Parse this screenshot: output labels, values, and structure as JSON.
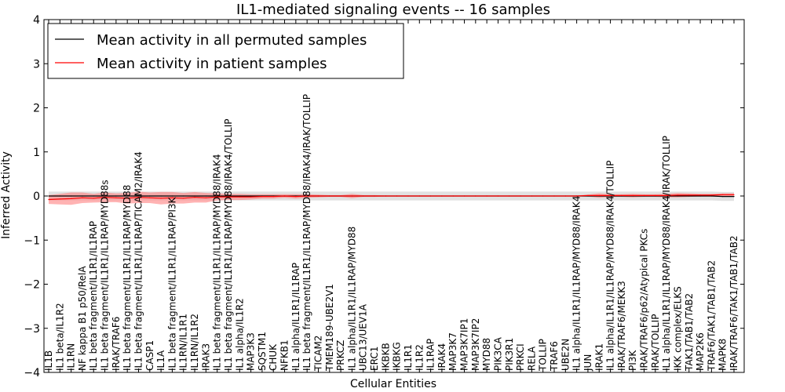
{
  "chart_data": {
    "type": "line",
    "title": "IL1-mediated signaling events -- 16 samples",
    "xlabel": "Cellular Entities",
    "ylabel": "Inferred Activity",
    "ylim": [
      -4,
      4
    ],
    "yticks": [
      -4,
      -3,
      -2,
      -1,
      0,
      1,
      2,
      3,
      4
    ],
    "grid": false,
    "legend_position": "top-left",
    "categories": [
      "IL1B",
      "IL1 beta/IL1R2",
      "IL1RN",
      "NF kappa B1 p50/RelA",
      "IL1 beta fragment/IL1R1/IL1RAP",
      "IL1 beta fragment/IL1R1/IL1RAP/MYD88s",
      "IRAK/TRAF6",
      "IL1 beta fragment/IL1R1/IL1RAP/MYD88",
      "IL1 beta fragment/IL1R1/IL1RAP/TICAM2/IRAK4",
      "CASP1",
      "IL1A",
      "IL1 beta fragment/IL1R1/IL1RAP/PI3K",
      "IL1RN/IL1R1",
      "IL1RN/IL1R2",
      "IRAK3",
      "IL1 beta fragment/IL1R1/IL1RAP/MYD88/IRAK4",
      "IL1 beta fragment/IL1R1/IL1RAP/MYD88/IRAK4/TOLLIP",
      "IL1 alpha/IL1R2",
      "MAP3K3",
      "SQSTM1",
      "CHUK",
      "NFKB1",
      "IL1 alpha/IL1R1/IL1RAP",
      "IL1 beta fragment/IL1R1/IL1RAP/MYD88/IRAK4/IRAK/TOLLIP",
      "TICAM2",
      "TMEM189-UBE2V1",
      "PRKCZ",
      "IL1 alpha/IL1R1/IL1RAP/MYD88",
      "UBC13/UEV1A",
      "ERC1",
      "IKBKB",
      "IKBKG",
      "IL1R1",
      "IL1R2",
      "IL1RAP",
      "IRAK4",
      "MAP3K7",
      "MAP3K7IP1",
      "MAP3K7IP2",
      "MYD88",
      "PIK3CA",
      "PIK3R1",
      "PRKCI",
      "RELA",
      "TOLLIP",
      "TRAF6",
      "UBE2N",
      "IL1 alpha/IL1R1/IL1RAP/MYD88/IRAK4",
      "JUN",
      "IRAK1",
      "IL1 alpha/IL1R1/IL1RAP/MYD88/IRAK4/TOLLIP",
      "IRAK/TRAF6/MEKK3",
      "PI3K",
      "IRAK/TRAF6/p62/Atypical PKCs",
      "IRAK/TOLLIP",
      "IL1 alpha/IL1R1/IL1RAP/MYD88/IRAK4/IRAK/TOLLIP",
      "IKK complex/ELKS",
      "TAK1/TAB1/TAB2",
      "MAP2K6",
      "TRAF6/TAK1/TAB1/TAB2",
      "MAPK8",
      "IRAK/TRAF6/TAK1/TAB1/TAB2"
    ],
    "series": [
      {
        "name": "Mean activity in all permuted samples",
        "color": "#000000",
        "values": [
          0.0,
          0.0,
          0.0,
          0.0,
          0.0,
          0.0,
          0.0,
          0.0,
          0.0,
          0.0,
          0.0,
          0.0,
          0.0,
          0.0,
          0.0,
          0.0,
          0.0,
          0.0,
          0.0,
          0.0,
          0.0,
          0.0,
          0.0,
          0.0,
          0.0,
          0.0,
          0.0,
          0.0,
          0.0,
          0.0,
          0.0,
          0.0,
          0.0,
          0.0,
          0.0,
          0.0,
          0.0,
          0.0,
          0.0,
          0.0,
          0.0,
          0.0,
          0.0,
          0.0,
          0.0,
          0.0,
          0.0,
          0.0,
          0.0,
          0.0,
          0.0,
          0.0,
          0.0,
          0.0,
          0.0,
          0.0,
          0.0,
          0.0,
          0.0,
          0.0,
          -0.01,
          -0.01
        ],
        "band": 0.1
      },
      {
        "name": "Mean activity in patient samples",
        "color": "#ff0000",
        "values": [
          -0.08,
          -0.07,
          -0.06,
          -0.04,
          -0.05,
          -0.03,
          -0.04,
          -0.05,
          -0.03,
          -0.04,
          -0.05,
          -0.04,
          -0.05,
          -0.03,
          -0.04,
          -0.02,
          -0.02,
          -0.02,
          -0.02,
          -0.01,
          -0.01,
          0.0,
          -0.01,
          0.0,
          0.0,
          0.0,
          0.0,
          0.0,
          0.0,
          0.0,
          0.0,
          0.0,
          0.0,
          0.0,
          0.0,
          0.0,
          0.0,
          0.0,
          0.0,
          0.0,
          0.0,
          0.0,
          0.0,
          0.0,
          0.0,
          0.0,
          0.0,
          0.0,
          0.01,
          0.01,
          0.01,
          0.01,
          0.01,
          0.01,
          0.01,
          0.01,
          0.02,
          0.02,
          0.02,
          0.02,
          0.03,
          0.03
        ],
        "band": [
          0.1,
          0.12,
          0.14,
          0.12,
          0.1,
          0.11,
          0.1,
          0.12,
          0.13,
          0.12,
          0.14,
          0.13,
          0.12,
          0.12,
          0.11,
          0.08,
          0.07,
          0.07,
          0.06,
          0.05,
          0.05,
          0.04,
          0.05,
          0.04,
          0.03,
          0.02,
          0.02,
          0.05,
          0.02,
          0.02,
          0.01,
          0.01,
          0.01,
          0.01,
          0.01,
          0.01,
          0.01,
          0.01,
          0.01,
          0.01,
          0.01,
          0.01,
          0.01,
          0.01,
          0.01,
          0.01,
          0.01,
          0.01,
          0.02,
          0.05,
          0.03,
          0.03,
          0.04,
          0.03,
          0.03,
          0.04,
          0.05,
          0.04,
          0.03,
          0.03,
          0.03,
          0.03
        ]
      }
    ],
    "legend": [
      {
        "label": "Mean activity in all permuted samples",
        "color": "#000000"
      },
      {
        "label": "Mean activity in patient samples",
        "color": "#ff0000"
      }
    ]
  }
}
